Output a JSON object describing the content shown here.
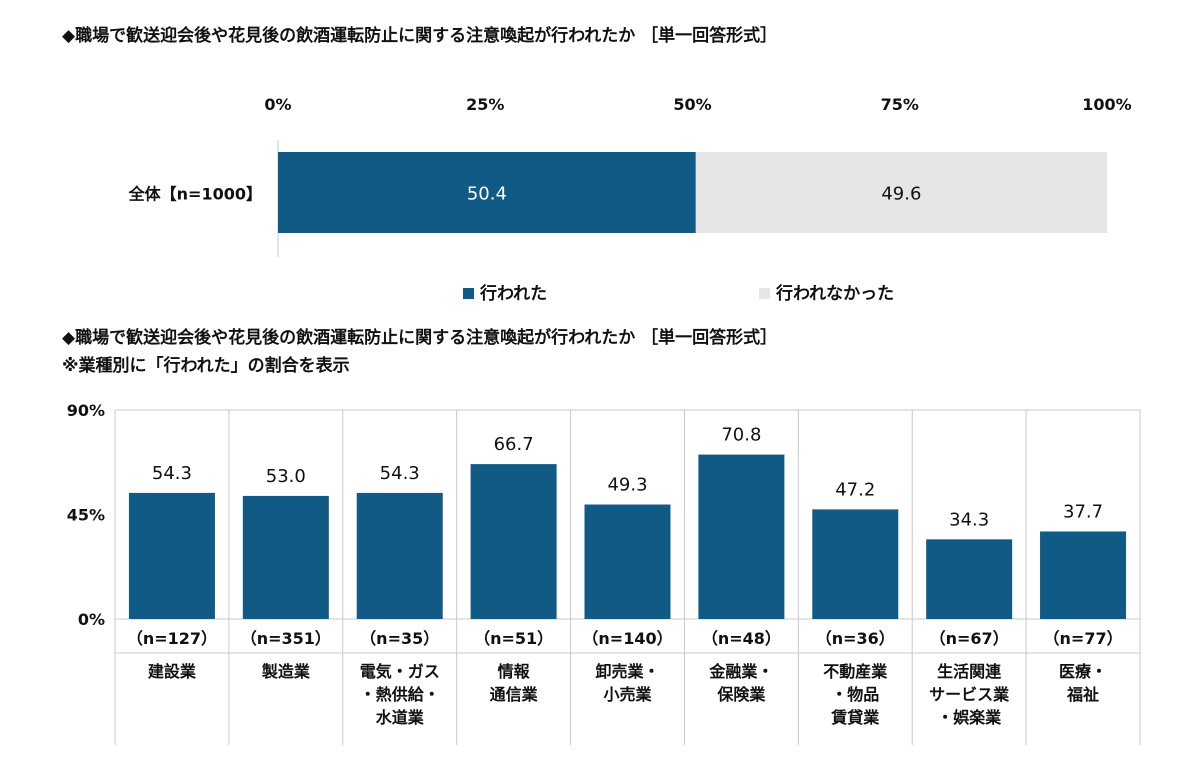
{
  "colors": {
    "primary": "#115a85",
    "secondary": "#e6e6e6",
    "grid": "#c8c8c8"
  },
  "chart_data": [
    {
      "type": "bar",
      "orientation": "horizontal-stacked-100",
      "title": "◆職場で歓送迎会後や花見後の飲酒運転防止に関する注意喚起が行われたか ［単一回答形式］",
      "categories": [
        "全体【n=1000】"
      ],
      "series": [
        {
          "name": "行われた",
          "values": [
            50.4
          ]
        },
        {
          "name": "行われなかった",
          "values": [
            49.6
          ]
        }
      ],
      "xlim": [
        0,
        100
      ],
      "xticks": [
        "0%",
        "25%",
        "50%",
        "75%",
        "100%"
      ],
      "legend": "bottom"
    },
    {
      "type": "bar",
      "title": "◆職場で歓送迎会後や花見後の飲酒運転防止に関する注意喚起が行われたか ［単一回答形式］",
      "subtitle": "※業種別に「行われた」の割合を表示",
      "categories": [
        "建設業",
        "製造業",
        "電気・ガス\n・熱供給・\n水道業",
        "情報\n通信業",
        "卸売業・\n小売業",
        "金融業・\n保険業",
        "不動産業\n・物品\n賃貸業",
        "生活関連\nサービス業\n・娯楽業",
        "医療・\n福祉"
      ],
      "n_labels": [
        "（n=127）",
        "（n=351）",
        "（n=35）",
        "（n=51）",
        "（n=140）",
        "（n=48）",
        "（n=36）",
        "（n=67）",
        "（n=77）"
      ],
      "values": [
        54.3,
        53.0,
        54.3,
        66.7,
        49.3,
        70.8,
        47.2,
        34.3,
        37.7
      ],
      "value_labels": [
        "54.3",
        "53.0",
        "54.3",
        "66.7",
        "49.3",
        "70.8",
        "47.2",
        "34.3",
        "37.7"
      ],
      "ylim": [
        0,
        90
      ],
      "yticks": [
        "0%",
        "45%",
        "90%"
      ]
    }
  ]
}
